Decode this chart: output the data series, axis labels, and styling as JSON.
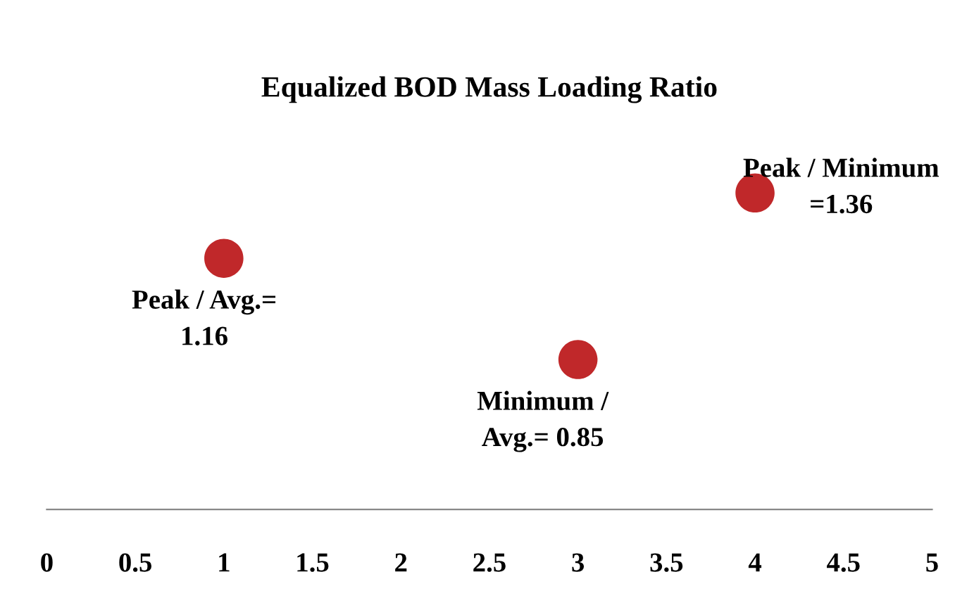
{
  "chart_data": {
    "type": "scatter",
    "title": "Equalized BOD Mass Loading Ratio",
    "x": [
      1,
      3,
      4
    ],
    "series": [
      {
        "color": "#c0282a",
        "values": [
          1.16,
          0.85,
          1.36
        ],
        "value_labels": [
          "Peak / Avg.=\n1.16",
          "Minimum /\nAvg.= 0.85",
          "Peak / Minimum\n=1.36"
        ]
      }
    ],
    "xlim": [
      0,
      5
    ],
    "xticks": [
      0,
      0.5,
      1,
      1.5,
      2,
      2.5,
      3,
      3.5,
      4,
      4.5,
      5
    ],
    "tick_labels": "x",
    "marker": "circle",
    "grid": false,
    "legend": false
  }
}
